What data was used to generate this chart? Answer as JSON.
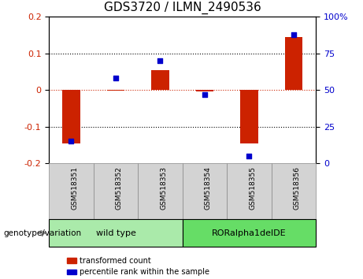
{
  "title": "GDS3720 / ILMN_2490536",
  "samples": [
    "GSM518351",
    "GSM518352",
    "GSM518353",
    "GSM518354",
    "GSM518355",
    "GSM518356"
  ],
  "transformed_count": [
    -0.145,
    -0.002,
    0.055,
    -0.005,
    -0.145,
    0.145
  ],
  "percentile_rank": [
    15,
    58,
    70,
    47,
    5,
    88
  ],
  "ylim_left": [
    -0.2,
    0.2
  ],
  "ylim_right": [
    0,
    100
  ],
  "yticks_left": [
    -0.2,
    -0.1,
    0.0,
    0.1,
    0.2
  ],
  "yticks_right": [
    0,
    25,
    50,
    75,
    100
  ],
  "ytick_labels_right": [
    "0",
    "25",
    "50",
    "75",
    "100%"
  ],
  "hlines": [
    0.1,
    -0.1
  ],
  "groups": [
    {
      "label": "wild type",
      "indices": [
        0,
        1,
        2
      ],
      "color": "#aaeaaa"
    },
    {
      "label": "RORalpha1delDE",
      "indices": [
        3,
        4,
        5
      ],
      "color": "#66dd66"
    }
  ],
  "bar_color": "#cc2200",
  "dot_color": "#0000cc",
  "zero_line_color": "#cc2200",
  "grid_line_color": "#000000",
  "title_fontsize": 11,
  "tick_label_color_left": "#cc2200",
  "tick_label_color_right": "#0000cc",
  "bar_width": 0.4,
  "legend_labels": [
    "transformed count",
    "percentile rank within the sample"
  ],
  "legend_colors": [
    "#cc2200",
    "#0000cc"
  ],
  "xlabel_area_color": "#d3d3d3",
  "genotype_label": "genotype/variation"
}
